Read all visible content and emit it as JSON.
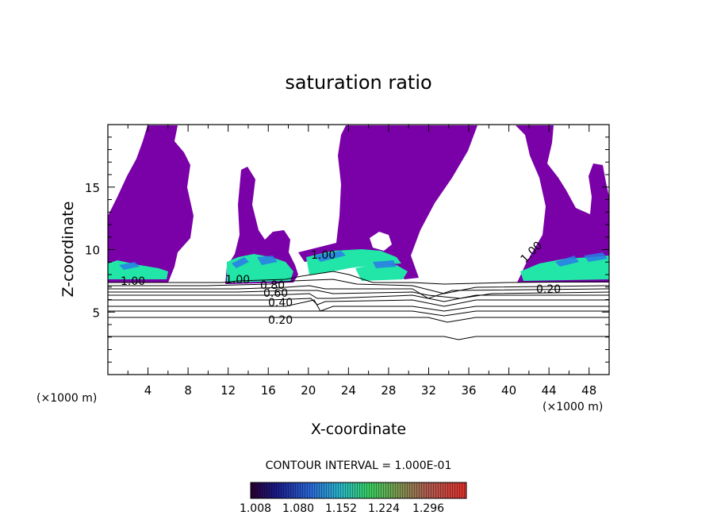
{
  "chart_data": {
    "type": "heatmap",
    "title": "saturation ratio",
    "xlabel": "X-coordinate",
    "ylabel": "Z-coordinate",
    "x_unit": "(×1000 m)",
    "xlim": [
      0,
      50
    ],
    "ylim": [
      0,
      20
    ],
    "x_ticks": [
      "4",
      "8",
      "12",
      "16",
      "20",
      "24",
      "28",
      "32",
      "36",
      "40",
      "44",
      "48"
    ],
    "y_ticks": [
      "5",
      "10",
      "15"
    ],
    "contour_interval_label": "CONTOUR INTERVAL = 1.000E-01",
    "contour_labels": [
      "1.00",
      "1.00",
      "1.00",
      "0.80",
      "0.60",
      "0.40",
      "0.20",
      "1.00",
      "0.20"
    ],
    "colorbar": {
      "labels": [
        "1.008",
        "1.080",
        "1.152",
        "1.224",
        "1.296"
      ],
      "range": [
        1.008,
        1.296
      ]
    },
    "colors": {
      "supersaturated": "#7a00a8",
      "high_band": "#21e6a8",
      "peak_band": "#1e90ff",
      "contour": "#000000"
    }
  }
}
